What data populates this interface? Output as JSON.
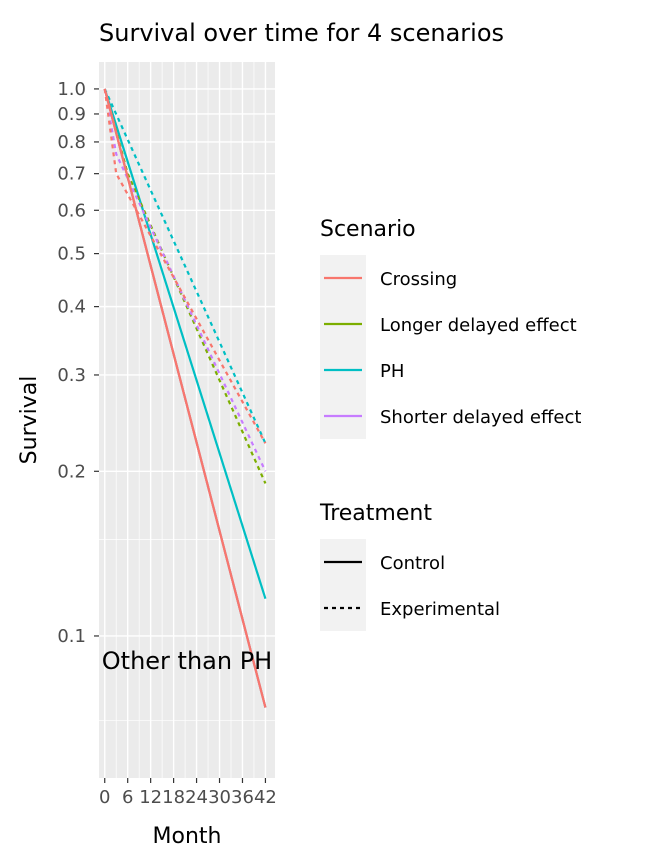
{
  "chart_data": {
    "type": "line",
    "title": "Survival over time for 4 scenarios",
    "annotation": "Other than PH",
    "xlabel": "Month",
    "ylabel": "Survival",
    "y_scale": "log",
    "x_ticks": [
      0,
      6,
      12,
      18,
      24,
      30,
      36,
      42
    ],
    "x_tick_labels": [
      "0",
      "6",
      "12",
      "18",
      "24",
      "30",
      "36",
      "42"
    ],
    "xlim": [
      -1.5,
      44.5
    ],
    "y_ticks": [
      1.0,
      0.9,
      0.8,
      0.7,
      0.6,
      0.5,
      0.4,
      0.3,
      0.2,
      0.1
    ],
    "y_tick_labels": [
      "1.0",
      "0.9",
      "0.8",
      "0.7",
      "0.6",
      "0.5",
      "0.4",
      "0.3",
      "0.2",
      "0.1"
    ],
    "ylim": [
      0.055,
      1.12
    ],
    "grid": true,
    "legends": [
      {
        "title": "Scenario",
        "entries": [
          {
            "label": "Crossing",
            "color": "#F8766D"
          },
          {
            "label": "Longer delayed effect",
            "color": "#7CAE00"
          },
          {
            "label": "PH",
            "color": "#00BFC4"
          },
          {
            "label": "Shorter delayed effect",
            "color": "#C77CFF"
          }
        ]
      },
      {
        "title": "Treatment",
        "entries": [
          {
            "label": "Control",
            "linetype": "solid"
          },
          {
            "label": "Experimental",
            "linetype": "dashed"
          }
        ]
      }
    ],
    "series": [
      {
        "scenario": "Crossing",
        "treatment": "Control",
        "color": "#F8766D",
        "dashed": false,
        "x": [
          0,
          42
        ],
        "y": [
          1.0,
          0.074
        ]
      },
      {
        "scenario": "Crossing",
        "treatment": "Experimental",
        "color": "#F8766D",
        "dashed": true,
        "x": [
          0,
          3,
          42
        ],
        "y": [
          1.0,
          0.7,
          0.225
        ]
      },
      {
        "scenario": "Longer delayed effect",
        "treatment": "Control",
        "color": "#7CAE00",
        "dashed": false,
        "x": [
          0,
          42
        ],
        "y": [
          1.0,
          0.074
        ]
      },
      {
        "scenario": "Longer delayed effect",
        "treatment": "Experimental",
        "color": "#7CAE00",
        "dashed": true,
        "x": [
          0,
          6,
          42
        ],
        "y": [
          1.0,
          0.7,
          0.19
        ]
      },
      {
        "scenario": "PH",
        "treatment": "Control",
        "color": "#00BFC4",
        "dashed": false,
        "x": [
          0,
          42
        ],
        "y": [
          1.0,
          0.117
        ]
      },
      {
        "scenario": "PH",
        "treatment": "Experimental",
        "color": "#00BFC4",
        "dashed": true,
        "x": [
          0,
          42
        ],
        "y": [
          1.0,
          0.225
        ]
      },
      {
        "scenario": "Shorter delayed effect",
        "treatment": "Control",
        "color": "#C77CFF",
        "dashed": false,
        "x": [
          0,
          42
        ],
        "y": [
          1.0,
          0.074
        ]
      },
      {
        "scenario": "Shorter delayed effect",
        "treatment": "Experimental",
        "color": "#C77CFF",
        "dashed": true,
        "x": [
          0,
          3,
          42
        ],
        "y": [
          1.0,
          0.76,
          0.2
        ]
      }
    ]
  }
}
